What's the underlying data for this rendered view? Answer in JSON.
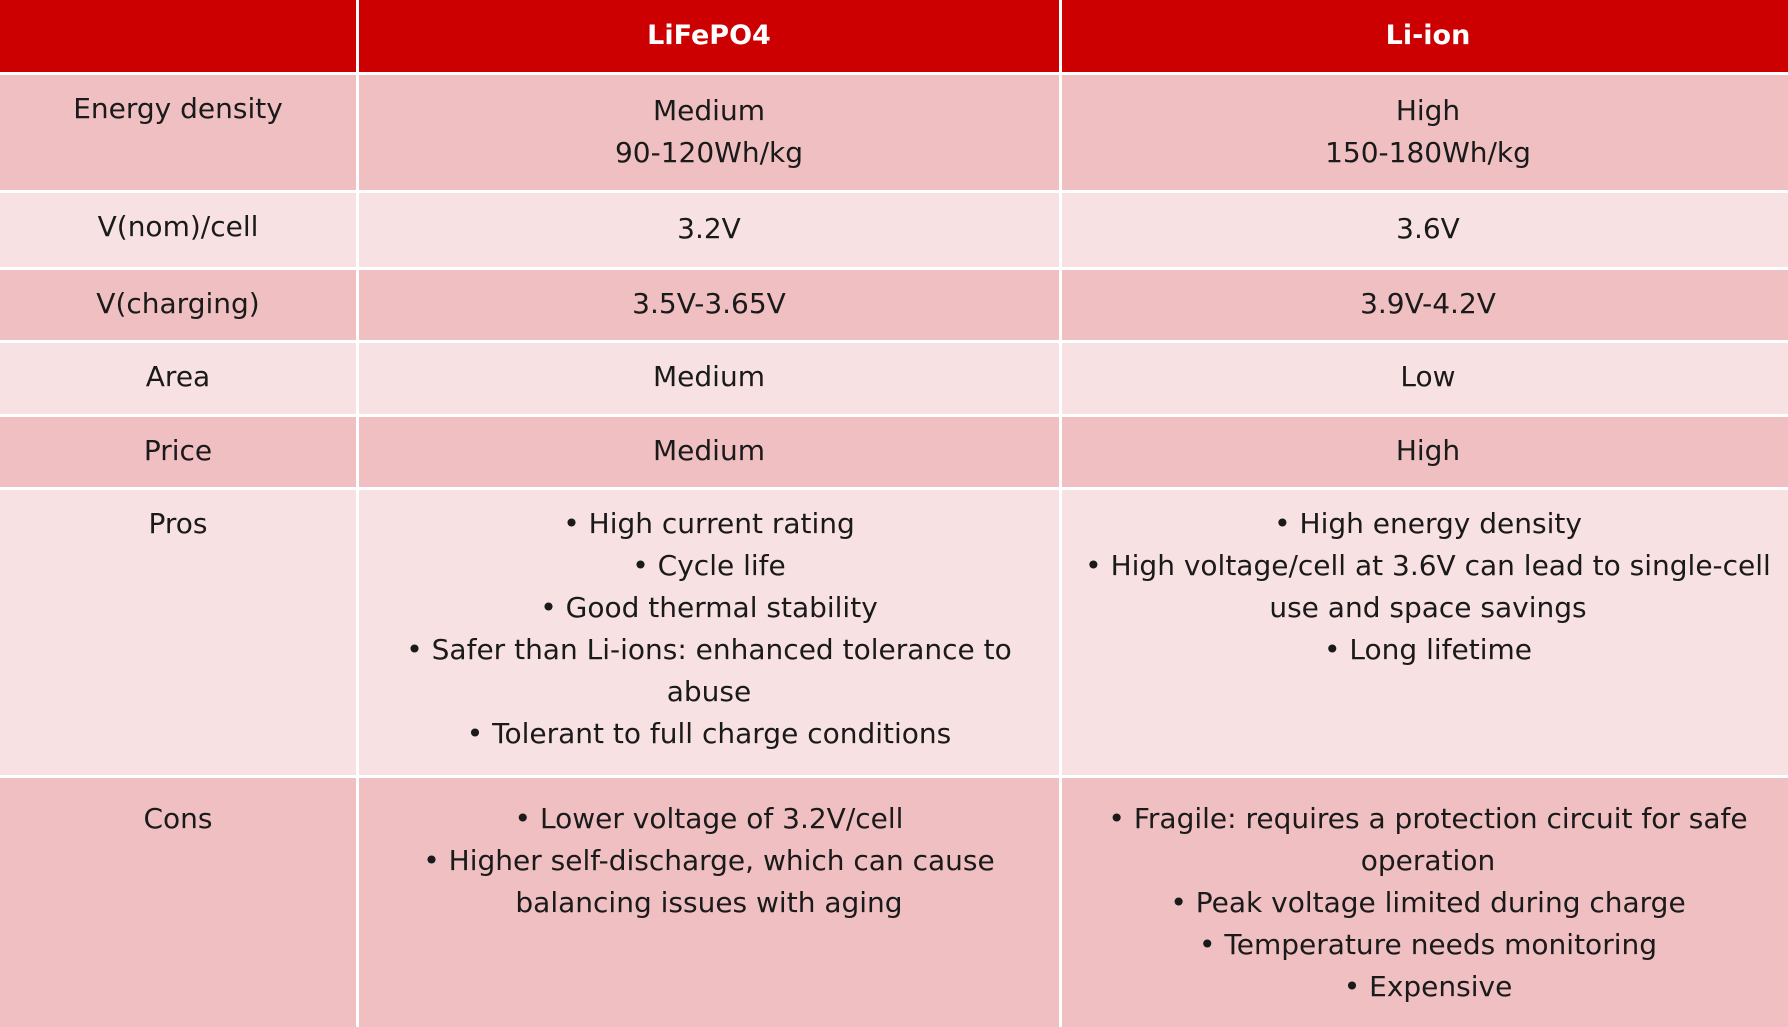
{
  "header": {
    "corner": "",
    "col1": "LiFePO4",
    "col2": "Li-ion"
  },
  "rows": [
    {
      "label": "Energy density",
      "lifepo4": [
        "Medium",
        "90-120Wh/kg"
      ],
      "liion": [
        "High",
        "150-180Wh/kg"
      ]
    },
    {
      "label": "V(nom)/cell",
      "lifepo4": "3.2V",
      "liion": "3.6V"
    },
    {
      "label": "V(charging)",
      "lifepo4": "3.5V-3.65V",
      "liion": "3.9V-4.2V"
    },
    {
      "label": "Area",
      "lifepo4": "Medium",
      "liion": "Low"
    },
    {
      "label": "Price",
      "lifepo4": "Medium",
      "liion": "High"
    },
    {
      "label": "Pros",
      "lifepo4": [
        "High current rating",
        "Cycle life",
        "Good thermal stability",
        "Safer than Li-ions: enhanced tolerance to abuse",
        "Tolerant to full charge conditions"
      ],
      "liion": [
        "High energy density",
        "High voltage/cell at 3.6V can lead to single-cell use and space savings",
        "Long lifetime"
      ]
    },
    {
      "label": "Cons",
      "lifepo4": [
        "Lower voltage of 3.2V/cell",
        "Higher self-discharge, which can cause balancing issues with aging"
      ],
      "liion": [
        "Fragile: requires a protection circuit for safe operation",
        "Peak voltage limited during charge",
        "Temperature needs monitoring",
        "Expensive"
      ]
    }
  ],
  "colors": {
    "header": "#cc0000",
    "row_dark": "#efbfc2",
    "row_light": "#f8e1e2",
    "header_text": "#ffffff"
  }
}
